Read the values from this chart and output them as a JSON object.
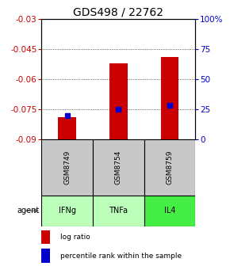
{
  "title": "GDS498 / 22762",
  "samples": [
    "GSM8749",
    "GSM8754",
    "GSM8759"
  ],
  "agents": [
    "IFNg",
    "TNFa",
    "IL4"
  ],
  "log_ratio_values": [
    -0.079,
    -0.052,
    -0.049
  ],
  "percentile_values": [
    -0.0782,
    -0.0748,
    -0.0728
  ],
  "bar_bottom": -0.09,
  "ylim": [
    -0.09,
    -0.03
  ],
  "yticks_left": [
    -0.09,
    -0.075,
    -0.06,
    -0.045,
    -0.03
  ],
  "ytick_labels_left": [
    "-0.09",
    "-0.075",
    "-0.06",
    "-0.045",
    "-0.03"
  ],
  "yticks_right_vals": [
    -0.09,
    -0.075,
    -0.06,
    -0.045,
    -0.03
  ],
  "ytick_labels_right": [
    "0",
    "25",
    "50",
    "75",
    "100%"
  ],
  "bar_color": "#cc0000",
  "percentile_color": "#0000cc",
  "agent_colors": [
    "#bbffbb",
    "#bbffbb",
    "#44ee44"
  ],
  "sample_bg_color": "#c8c8c8",
  "title_fontsize": 10,
  "tick_fontsize": 7.5
}
